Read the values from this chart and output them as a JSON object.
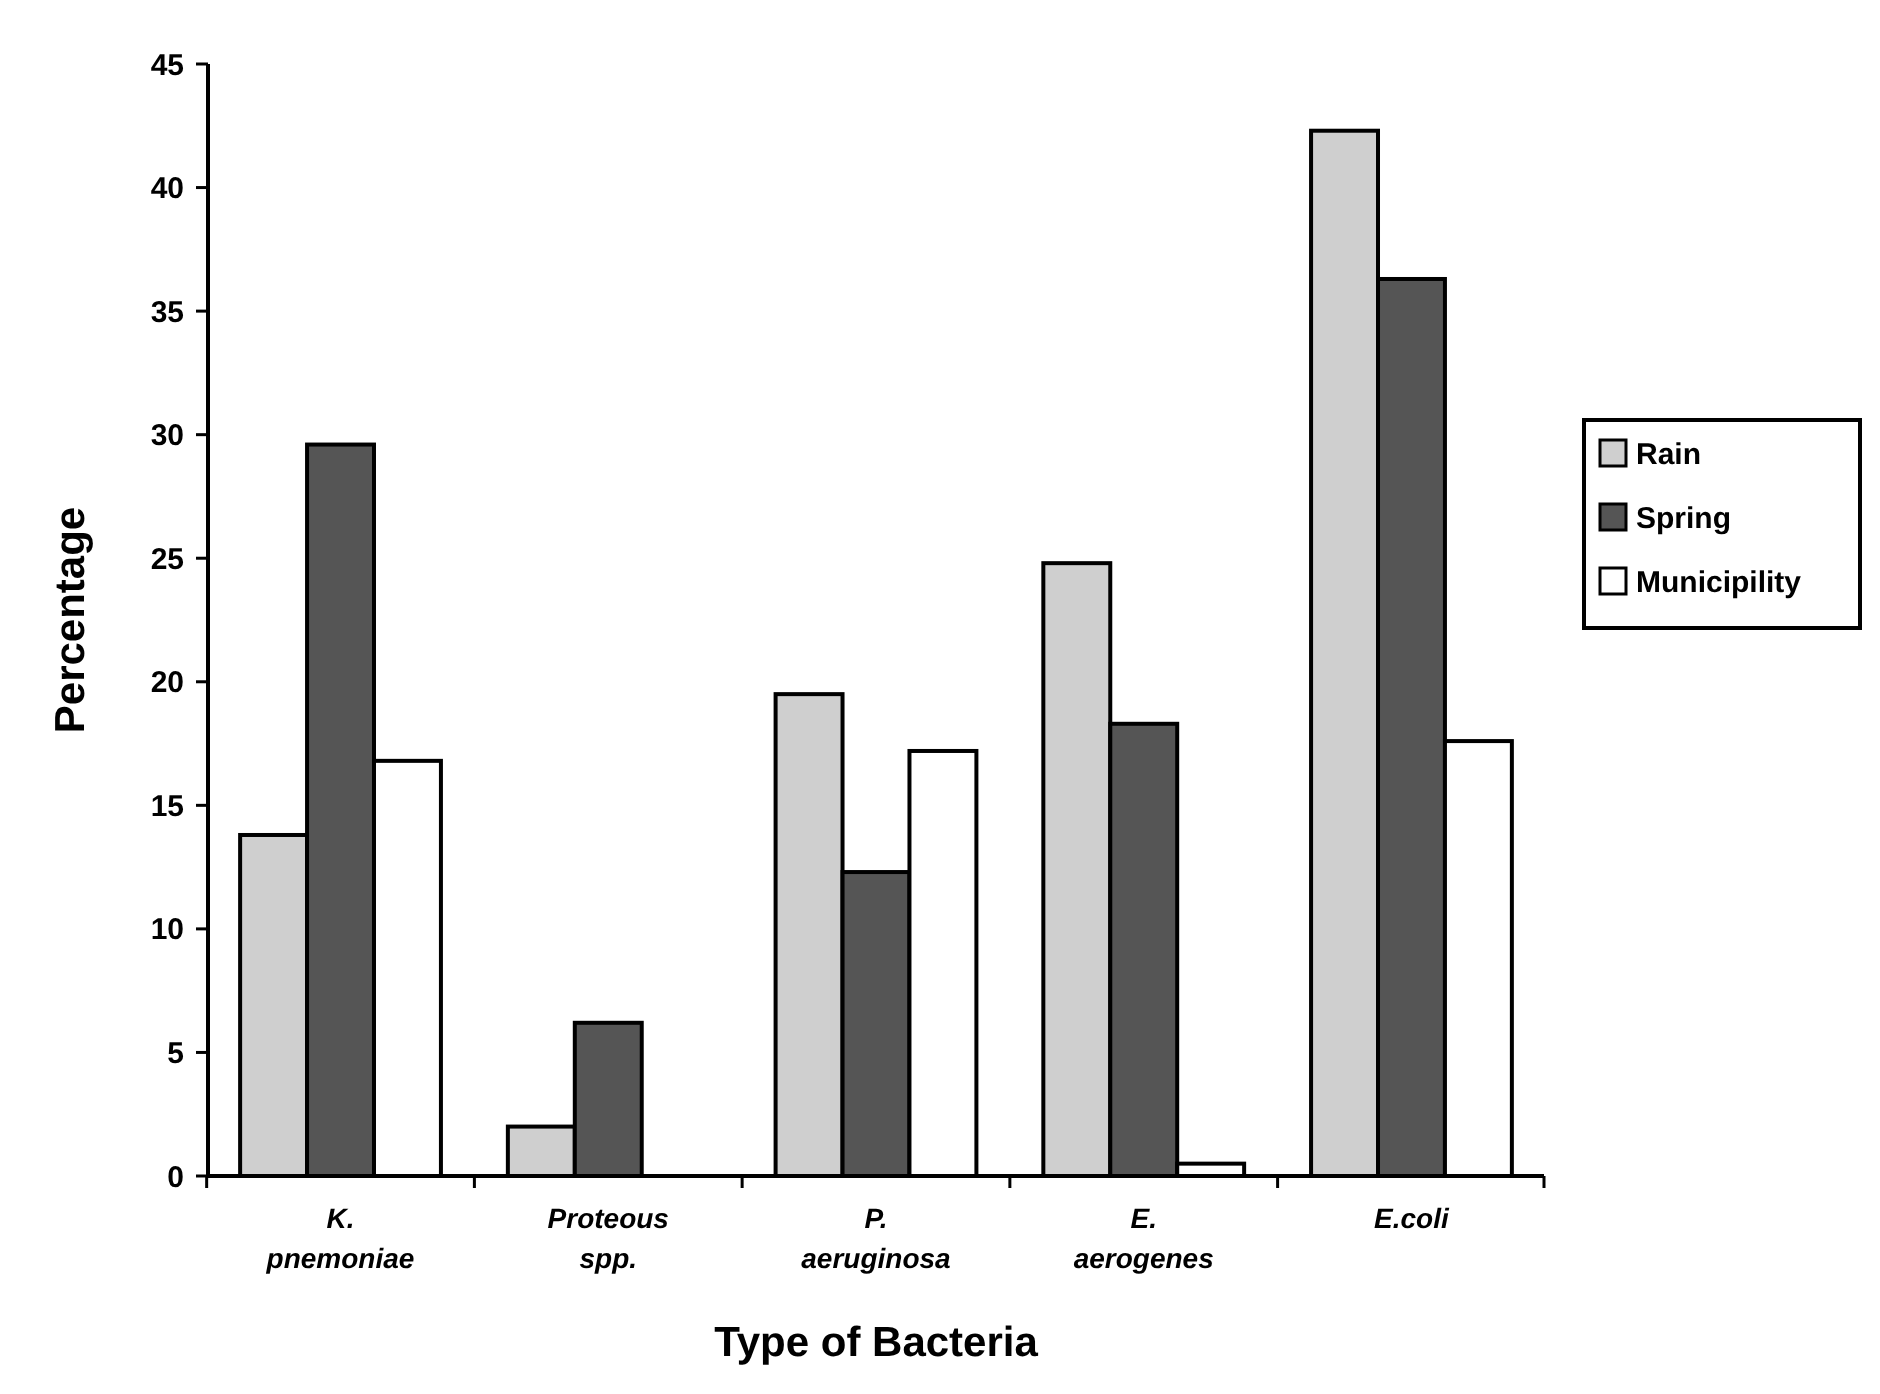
{
  "chart_data": {
    "type": "bar",
    "xlabel": "Type of Bacteria",
    "ylabel": "Percentage",
    "categories": [
      "K.\npnemoniae",
      "Proteous\nspp.",
      "P.\naeruginosa",
      "E.\naerogenes",
      "E.coli"
    ],
    "series": [
      {
        "name": "Rain",
        "color": "#cfcfcf",
        "values": [
          13.8,
          2,
          19.5,
          24.8,
          42.3
        ]
      },
      {
        "name": "Spring",
        "color": "#555555",
        "values": [
          29.6,
          6.2,
          12.3,
          18.3,
          36.3
        ]
      },
      {
        "name": "Municipility",
        "color": "#ffffff",
        "values": [
          16.8,
          0,
          17.2,
          0.5,
          17.6
        ]
      }
    ],
    "ylim": [
      0,
      45
    ],
    "yticks": [
      0,
      5,
      10,
      15,
      20,
      25,
      30,
      35,
      40,
      45
    ],
    "grid": false,
    "legend": "right"
  }
}
